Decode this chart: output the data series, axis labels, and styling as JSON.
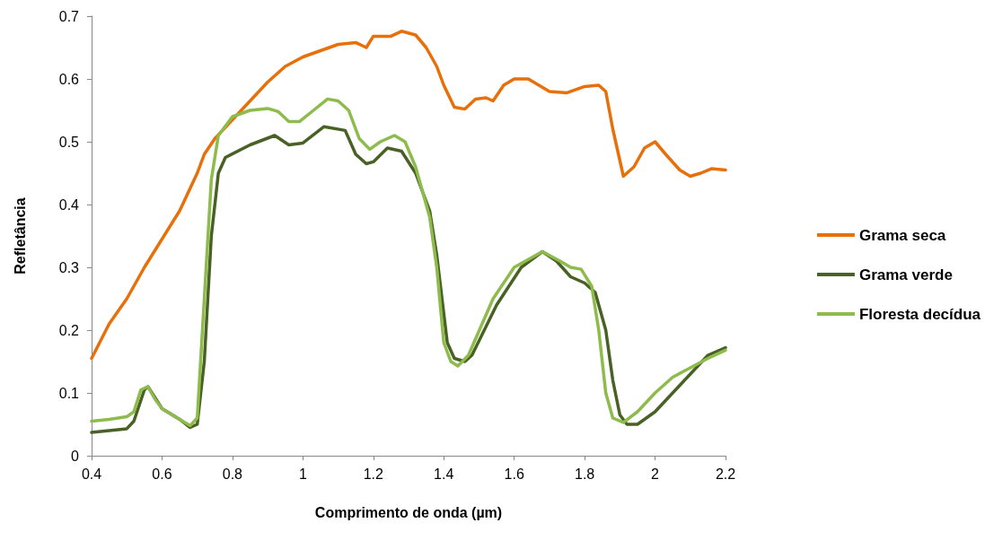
{
  "chart_data": {
    "type": "line",
    "xlabel": "Comprimento de onda (µm)",
    "ylabel": "Refletância",
    "xlim": [
      0.4,
      2.2
    ],
    "xticks": [
      0.4,
      0.6,
      0.8,
      1,
      1.2,
      1.4,
      1.6,
      1.8,
      2,
      2.2
    ],
    "ylim": [
      0,
      0.7
    ],
    "yticks": [
      0,
      0.1,
      0.2,
      0.3,
      0.4,
      0.5,
      0.6,
      0.7
    ],
    "grid": false,
    "legend": "right",
    "marker": "none",
    "line_style": "solid",
    "series": [
      {
        "name": "Grama seca",
        "color": "#e8700a",
        "x": [
          0.4,
          0.45,
          0.5,
          0.55,
          0.6,
          0.65,
          0.7,
          0.72,
          0.75,
          0.8,
          0.85,
          0.9,
          0.95,
          1,
          1.05,
          1.1,
          1.15,
          1.18,
          1.2,
          1.25,
          1.28,
          1.32,
          1.35,
          1.38,
          1.4,
          1.43,
          1.46,
          1.49,
          1.52,
          1.54,
          1.57,
          1.6,
          1.64,
          1.67,
          1.7,
          1.75,
          1.8,
          1.84,
          1.86,
          1.88,
          1.9,
          1.91,
          1.94,
          1.97,
          2,
          2.03,
          2.07,
          2.1,
          2.13,
          2.16,
          2.2
        ],
        "values": [
          0.155,
          0.21,
          0.25,
          0.3,
          0.345,
          0.39,
          0.45,
          0.48,
          0.505,
          0.535,
          0.565,
          0.595,
          0.62,
          0.635,
          0.645,
          0.655,
          0.658,
          0.65,
          0.668,
          0.668,
          0.676,
          0.67,
          0.65,
          0.62,
          0.59,
          0.555,
          0.552,
          0.568,
          0.57,
          0.565,
          0.59,
          0.6,
          0.6,
          0.59,
          0.58,
          0.578,
          0.588,
          0.59,
          0.58,
          0.52,
          0.47,
          0.445,
          0.46,
          0.49,
          0.5,
          0.48,
          0.455,
          0.445,
          0.45,
          0.457,
          0.455
        ]
      },
      {
        "name": "Grama verde",
        "color": "#4a6125",
        "x": [
          0.4,
          0.45,
          0.5,
          0.52,
          0.55,
          0.56,
          0.6,
          0.65,
          0.68,
          0.7,
          0.72,
          0.74,
          0.76,
          0.78,
          0.85,
          0.92,
          0.96,
          1,
          1.06,
          1.12,
          1.15,
          1.18,
          1.2,
          1.24,
          1.28,
          1.32,
          1.36,
          1.38,
          1.41,
          1.43,
          1.46,
          1.48,
          1.55,
          1.62,
          1.68,
          1.72,
          1.76,
          1.8,
          1.83,
          1.86,
          1.88,
          1.9,
          1.92,
          1.95,
          2,
          2.05,
          2.1,
          2.15,
          2.2
        ],
        "values": [
          0.037,
          0.04,
          0.043,
          0.055,
          0.105,
          0.11,
          0.075,
          0.058,
          0.045,
          0.05,
          0.15,
          0.35,
          0.45,
          0.475,
          0.495,
          0.51,
          0.495,
          0.498,
          0.524,
          0.518,
          0.48,
          0.465,
          0.468,
          0.49,
          0.485,
          0.45,
          0.39,
          0.32,
          0.18,
          0.155,
          0.15,
          0.16,
          0.24,
          0.3,
          0.325,
          0.31,
          0.285,
          0.275,
          0.26,
          0.2,
          0.12,
          0.065,
          0.05,
          0.05,
          0.07,
          0.1,
          0.13,
          0.16,
          0.172
        ]
      },
      {
        "name": "Floresta decídua",
        "color": "#8dbb4c",
        "x": [
          0.4,
          0.45,
          0.5,
          0.52,
          0.54,
          0.56,
          0.58,
          0.6,
          0.65,
          0.68,
          0.7,
          0.72,
          0.74,
          0.76,
          0.8,
          0.85,
          0.9,
          0.93,
          0.96,
          0.99,
          1.03,
          1.07,
          1.1,
          1.13,
          1.16,
          1.19,
          1.22,
          1.26,
          1.29,
          1.32,
          1.36,
          1.38,
          1.4,
          1.42,
          1.44,
          1.47,
          1.54,
          1.6,
          1.68,
          1.73,
          1.76,
          1.79,
          1.82,
          1.84,
          1.86,
          1.88,
          1.91,
          1.95,
          2,
          2.05,
          2.1,
          2.15,
          2.2
        ],
        "values": [
          0.055,
          0.058,
          0.062,
          0.07,
          0.105,
          0.11,
          0.09,
          0.075,
          0.058,
          0.048,
          0.06,
          0.25,
          0.44,
          0.51,
          0.54,
          0.55,
          0.553,
          0.548,
          0.532,
          0.532,
          0.55,
          0.568,
          0.565,
          0.55,
          0.505,
          0.488,
          0.5,
          0.51,
          0.5,
          0.46,
          0.38,
          0.3,
          0.18,
          0.15,
          0.143,
          0.16,
          0.25,
          0.3,
          0.325,
          0.31,
          0.3,
          0.297,
          0.27,
          0.2,
          0.1,
          0.06,
          0.053,
          0.07,
          0.1,
          0.125,
          0.14,
          0.155,
          0.168
        ]
      }
    ]
  }
}
